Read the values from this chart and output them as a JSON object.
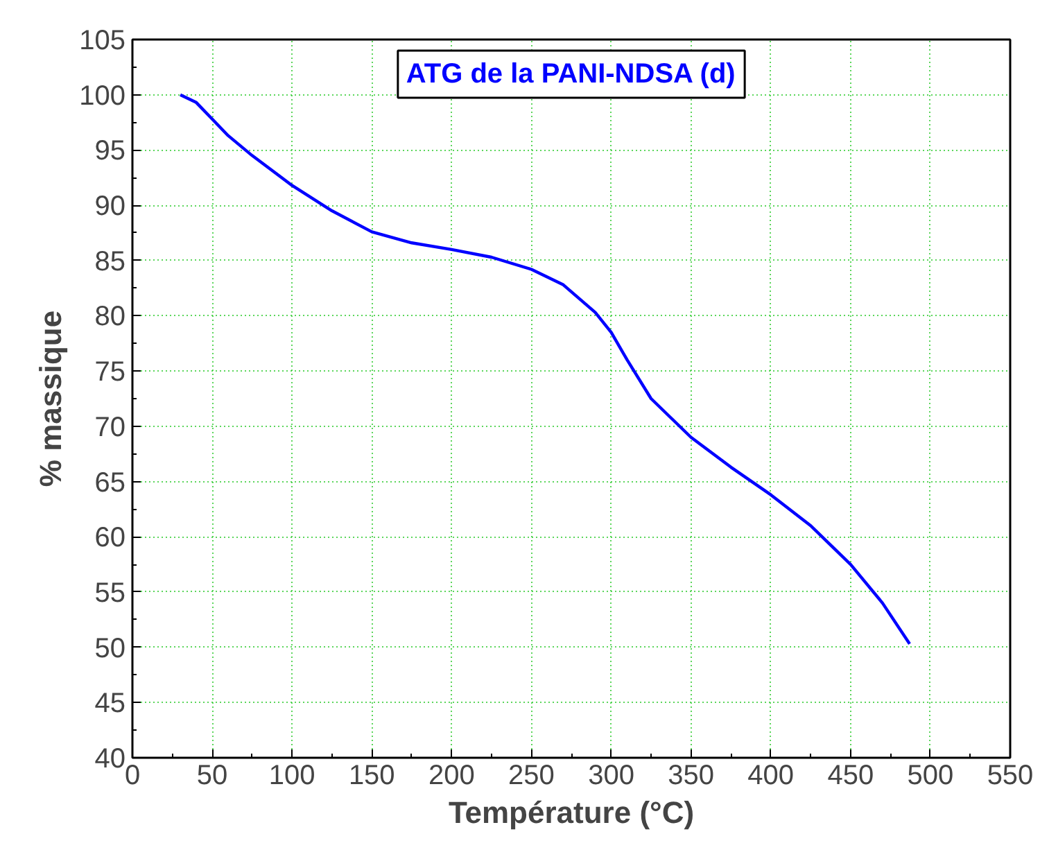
{
  "chart_data": {
    "type": "line",
    "title": "ATG de la PANI-NDSA (d)",
    "xlabel": "Température (°C)",
    "ylabel": "% massique",
    "x": [
      30,
      40,
      50,
      60,
      75,
      100,
      125,
      150,
      175,
      200,
      225,
      250,
      270,
      290,
      300,
      310,
      325,
      350,
      375,
      400,
      425,
      450,
      470,
      487
    ],
    "series": [
      {
        "color": "#0000ff",
        "values": [
          100,
          99.3,
          97.8,
          96.3,
          94.5,
          91.8,
          89.5,
          87.6,
          86.6,
          86.0,
          85.3,
          84.2,
          82.8,
          80.3,
          78.5,
          76.0,
          72.5,
          69.0,
          66.3,
          63.8,
          61.0,
          57.5,
          54.0,
          50.3
        ]
      }
    ],
    "xlim": [
      0,
      550
    ],
    "xticks": [
      0,
      50,
      100,
      150,
      200,
      250,
      300,
      350,
      400,
      450,
      500,
      550
    ],
    "ylim": [
      40,
      105
    ],
    "yticks": [
      40,
      45,
      50,
      55,
      60,
      65,
      70,
      75,
      80,
      85,
      90,
      95,
      100,
      105
    ],
    "grid": true,
    "marker": "none",
    "line_style": "solid"
  }
}
